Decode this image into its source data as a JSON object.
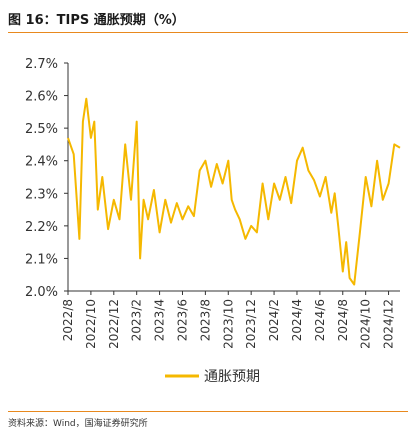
{
  "header": {
    "title": "图 16：TIPS 通胀预期（%）"
  },
  "footer": {
    "source": "资料来源：Wind，国海证券研究所"
  },
  "chart_data": {
    "type": "line",
    "title": "",
    "xlabel": "",
    "ylabel": "",
    "ylim": [
      2.0,
      2.7
    ],
    "yticks": [
      "2.0%",
      "2.1%",
      "2.2%",
      "2.3%",
      "2.4%",
      "2.5%",
      "2.6%",
      "2.7%"
    ],
    "ytick_values": [
      2.0,
      2.1,
      2.2,
      2.3,
      2.4,
      2.5,
      2.6,
      2.7
    ],
    "xticks": [
      "2022/8",
      "2022/10",
      "2022/12",
      "2023/2",
      "2023/4",
      "2023/6",
      "2023/8",
      "2023/10",
      "2023/12",
      "2024/2",
      "2024/4",
      "2024/6",
      "2024/8",
      "2024/10",
      "2024/12"
    ],
    "xrange": [
      "2022/8",
      "2025/1"
    ],
    "legend": {
      "position": "bottom-center"
    },
    "grid": false,
    "colors": {
      "series": "#f5b800",
      "axis": "#333333",
      "accent": "#e8891e"
    },
    "series": [
      {
        "name": "通胀预期",
        "x": [
          "2022/8",
          "2022/8.5",
          "2022/9",
          "2022/9.3",
          "2022/9.6",
          "2022/10",
          "2022/10.3",
          "2022/10.6",
          "2022/11",
          "2022/11.5",
          "2022/12",
          "2022/12.5",
          "2023/1",
          "2023/1.5",
          "2023/2",
          "2023/2.3",
          "2023/2.6",
          "2023/3",
          "2023/3.5",
          "2023/4",
          "2023/4.5",
          "2023/5",
          "2023/5.5",
          "2023/6",
          "2023/6.5",
          "2023/7",
          "2023/7.5",
          "2023/8",
          "2023/8.5",
          "2023/9",
          "2023/9.5",
          "2023/10",
          "2023/10.3",
          "2023/10.6",
          "2023/11",
          "2023/11.5",
          "2023/12",
          "2023/12.5",
          "2024/1",
          "2024/1.5",
          "2024/2",
          "2024/2.5",
          "2024/3",
          "2024/3.5",
          "2024/4",
          "2024/4.5",
          "2024/5",
          "2024/5.5",
          "2024/6",
          "2024/6.5",
          "2024/7",
          "2024/7.3",
          "2024/7.6",
          "2024/8",
          "2024/8.3",
          "2024/8.6",
          "2024/9",
          "2024/9.5",
          "2024/10",
          "2024/10.5",
          "2024/11",
          "2024/11.5",
          "2024/12",
          "2024/12.5",
          "2025/1"
        ],
        "values": [
          2.47,
          2.42,
          2.16,
          2.52,
          2.59,
          2.47,
          2.52,
          2.25,
          2.35,
          2.19,
          2.28,
          2.22,
          2.45,
          2.28,
          2.52,
          2.1,
          2.28,
          2.22,
          2.31,
          2.18,
          2.28,
          2.21,
          2.27,
          2.22,
          2.26,
          2.23,
          2.37,
          2.4,
          2.32,
          2.39,
          2.33,
          2.4,
          2.28,
          2.25,
          2.22,
          2.16,
          2.2,
          2.18,
          2.33,
          2.22,
          2.33,
          2.28,
          2.35,
          2.27,
          2.4,
          2.44,
          2.37,
          2.34,
          2.29,
          2.35,
          2.24,
          2.3,
          2.2,
          2.06,
          2.15,
          2.04,
          2.02,
          2.18,
          2.35,
          2.26,
          2.4,
          2.28,
          2.33,
          2.45,
          2.44
        ]
      }
    ]
  }
}
